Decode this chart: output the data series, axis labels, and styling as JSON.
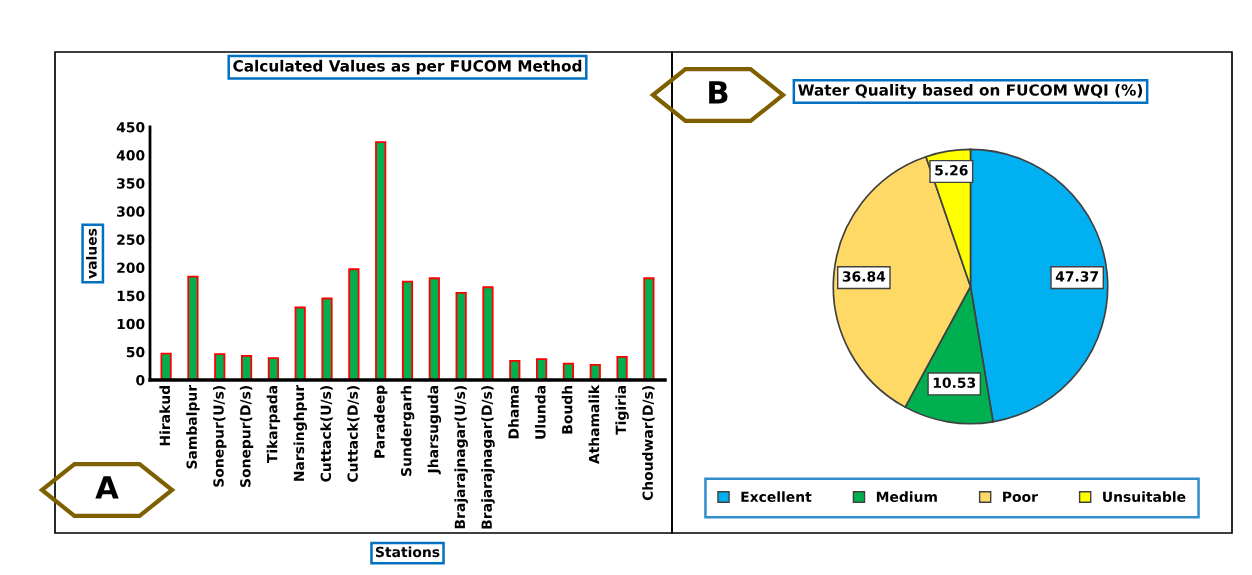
{
  "chart_data": [
    {
      "type": "bar",
      "title": "Calculated Values as per FUCOM Method",
      "xlabel": "Stations",
      "ylabel": "values",
      "annotations": [
        "A"
      ],
      "categories": [
        "Hirakud",
        "Sambalpur",
        "Sonepur(U/s)",
        "Sonepur(D/s)",
        "Tikarpada",
        "Narsinghpur",
        "Cuttack(U/s)",
        "Cuttack(D/s)",
        "Paradeep",
        "Sundergarh",
        "Jharsuguda",
        "Brajarajnagar(U/s)",
        "Brajarajnagar(D/s)",
        "Dhama",
        "Ulunda",
        "Boudh",
        "Athamalik",
        "Tigiria",
        "Choudwar(D/s)"
      ],
      "values": [
        47,
        184,
        46,
        43,
        39,
        129,
        145,
        197,
        423,
        175,
        181,
        155,
        165,
        34,
        37,
        29,
        27,
        41,
        181
      ],
      "color": "#00b050",
      "ylim": [
        0,
        450
      ],
      "yticks": [
        0,
        50,
        100,
        150,
        200,
        250,
        300,
        350,
        400,
        450
      ],
      "grid": false,
      "legend": false
    },
    {
      "type": "pie",
      "title": "Water Quality based on FUCOM WQI (%)",
      "annotations": [
        "B"
      ],
      "categories": [
        "Excellent",
        "Medium",
        "Poor",
        "Unsuitable"
      ],
      "values": [
        47.37,
        10.53,
        36.84,
        5.26
      ],
      "colors": [
        "#00b0f0",
        "#00b050",
        "#ffd966",
        "#ffff00"
      ],
      "data_labels": true,
      "legend": "bottom"
    }
  ]
}
